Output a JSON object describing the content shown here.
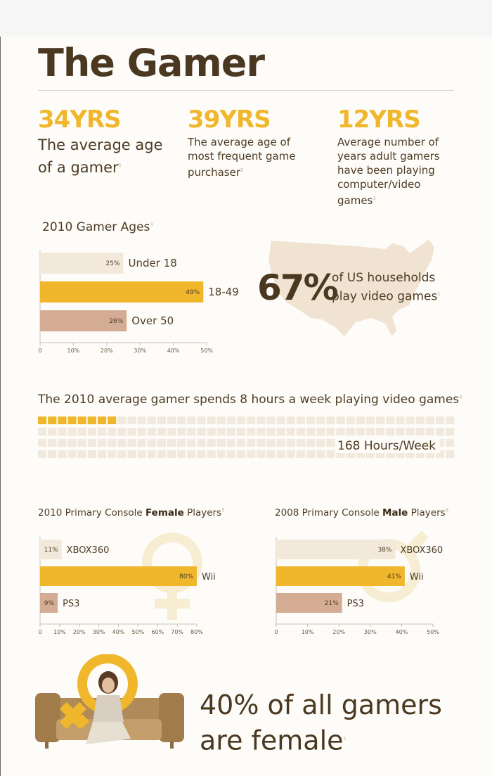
{
  "title": "The Gamer",
  "stats": [
    {
      "value": "34YRS",
      "text": "The average age of a gamer",
      "note": "1"
    },
    {
      "value": "39YRS",
      "text": "The average age of most frequent game purchaser",
      "note": "2"
    },
    {
      "value": "12YRS",
      "text": "Average number of years adult gamers have been playing computer/video games",
      "note": "3"
    }
  ],
  "us_households": {
    "value": "67%",
    "text": "of US households play video games",
    "note": "1"
  },
  "hours": {
    "title": "The 2010 average gamer spends 8 hours a week playing video games",
    "note": "4",
    "hours_label": "168 Hours/Week"
  },
  "female": {
    "text": "40% of all gamers are female",
    "note": "1"
  },
  "colors": {
    "accent": "#f0b72c",
    "light": "#f3e9da",
    "tan": "#d3ac93",
    "brown": "#4a3820"
  },
  "chart_data": [
    {
      "type": "bar",
      "title": "2010 Gamer Ages",
      "title_note": "3",
      "categories": [
        "Under 18",
        "18-49",
        "Over 50"
      ],
      "values": [
        25,
        49,
        26
      ],
      "value_labels": [
        "25%",
        "49%",
        "26%"
      ],
      "xlim": [
        0,
        50
      ],
      "ticks": [
        "0",
        "10%",
        "20%",
        "30%",
        "40%",
        "50%"
      ]
    },
    {
      "type": "bar",
      "title_pre": "2010 Primary Console ",
      "title_bold": "Female",
      "title_post": " Players",
      "title_note": "5",
      "categories": [
        "XBOX360",
        "Wii",
        "PS3"
      ],
      "values": [
        11,
        80,
        9
      ],
      "value_labels": [
        "11%",
        "80%",
        "9%"
      ],
      "xlim": [
        0,
        80
      ],
      "ticks": [
        "0",
        "10%",
        "20%",
        "30%",
        "40%",
        "50%",
        "60%",
        "70%",
        "80%"
      ]
    },
    {
      "type": "bar",
      "title_pre": "2008 Primary Console ",
      "title_bold": "Male",
      "title_post": " Players",
      "title_note": "6",
      "categories": [
        "XBOX360",
        "Wii",
        "PS3"
      ],
      "values": [
        38,
        41,
        21
      ],
      "value_labels": [
        "38%",
        "41%",
        "21%"
      ],
      "xlim": [
        0,
        50
      ],
      "ticks": [
        "0",
        "10%",
        "20%",
        "30%",
        "40%",
        "50%"
      ]
    }
  ],
  "hours_grid": {
    "total": 168,
    "filled": 8
  }
}
